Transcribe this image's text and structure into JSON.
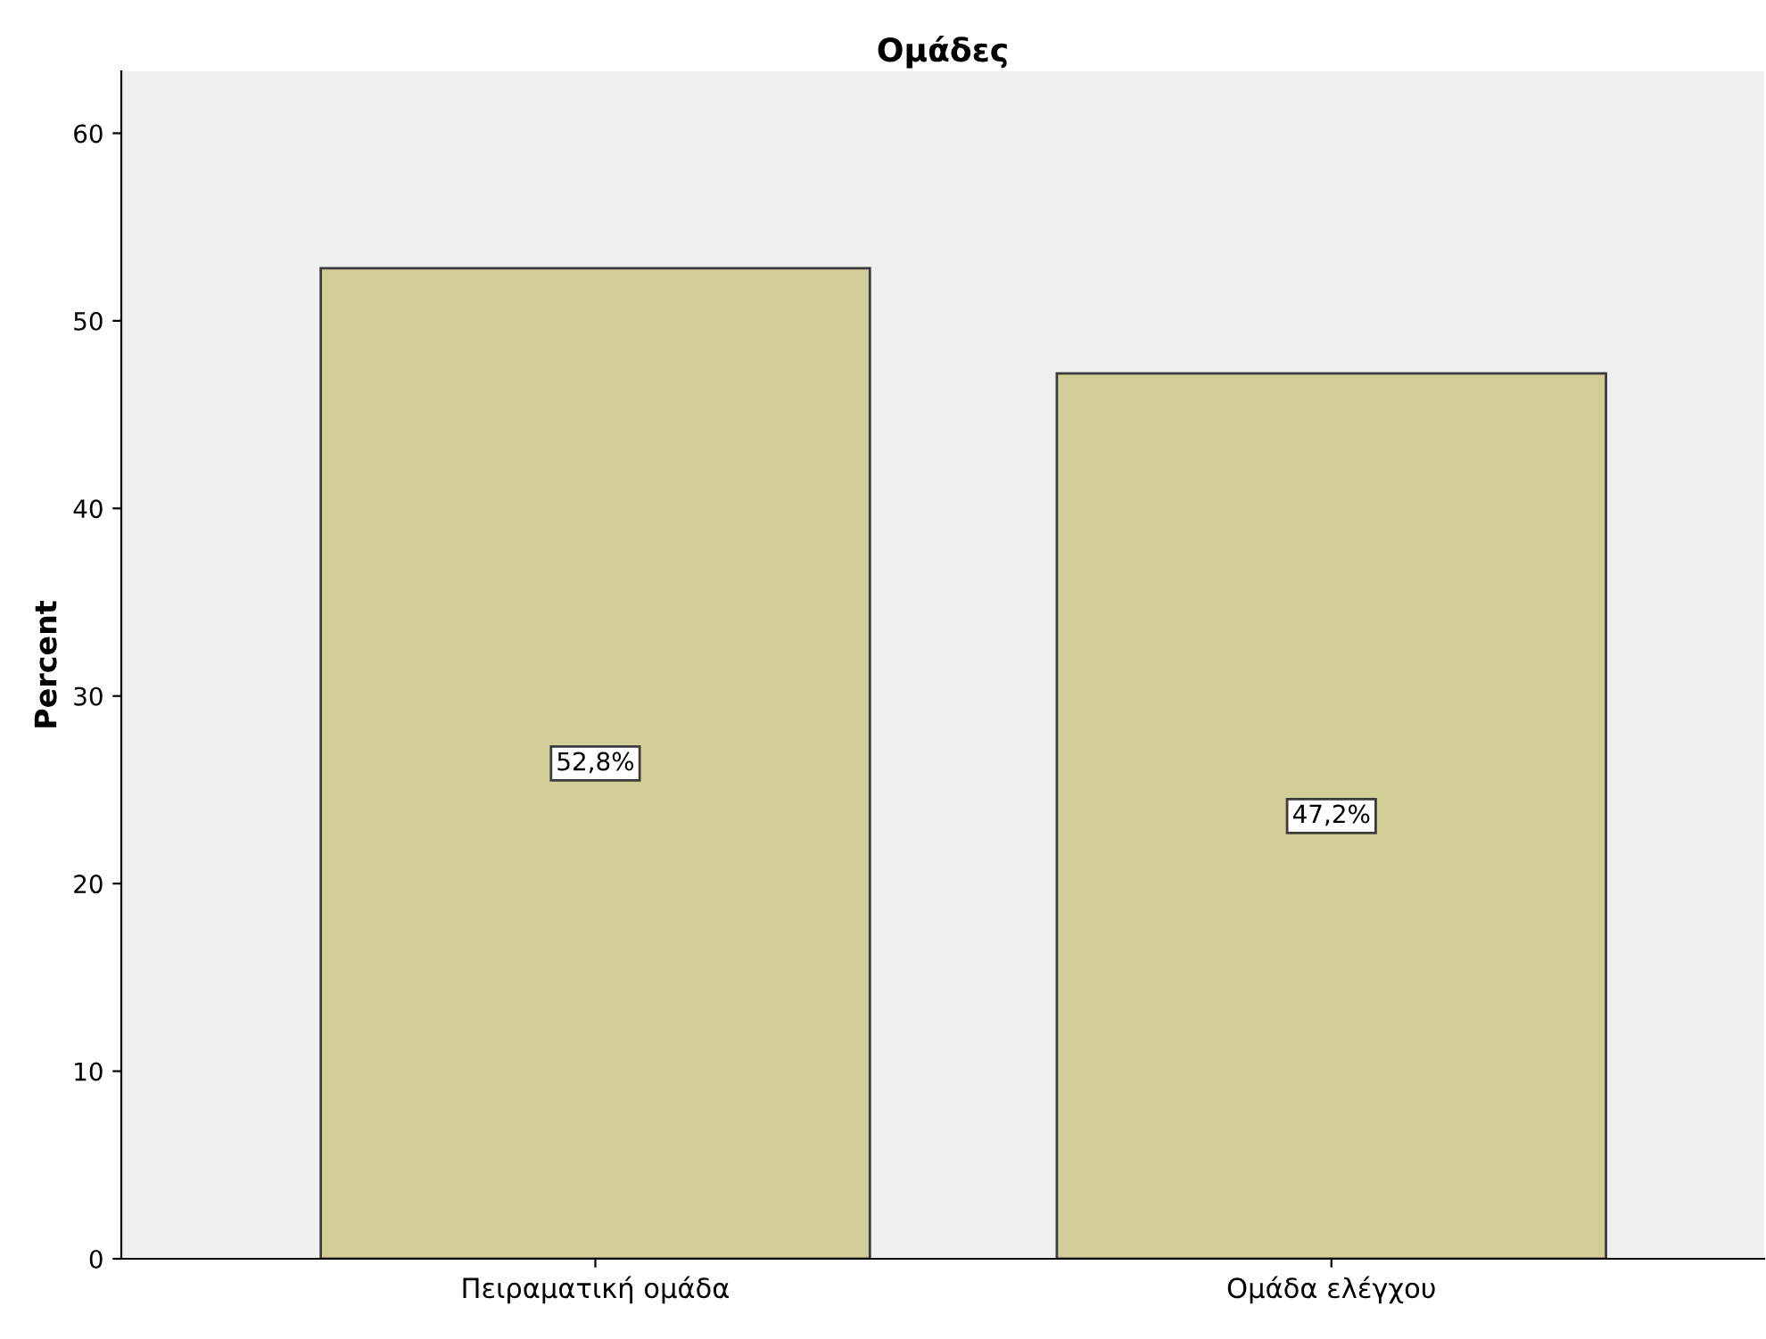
{
  "chart_data": {
    "type": "bar",
    "title": "Ομάδες",
    "ylabel": "Percent",
    "categories": [
      "Πειραματική ομάδα",
      "Ομάδα ελέγχου"
    ],
    "values": [
      52.8,
      47.2
    ],
    "value_labels": [
      "52,8%",
      "47,2%"
    ],
    "color": "#d3ce98",
    "ylim": [
      0,
      63.3
    ],
    "yticks": [
      0,
      10,
      20,
      30,
      40,
      50,
      60
    ],
    "grid": false,
    "legend": false
  }
}
